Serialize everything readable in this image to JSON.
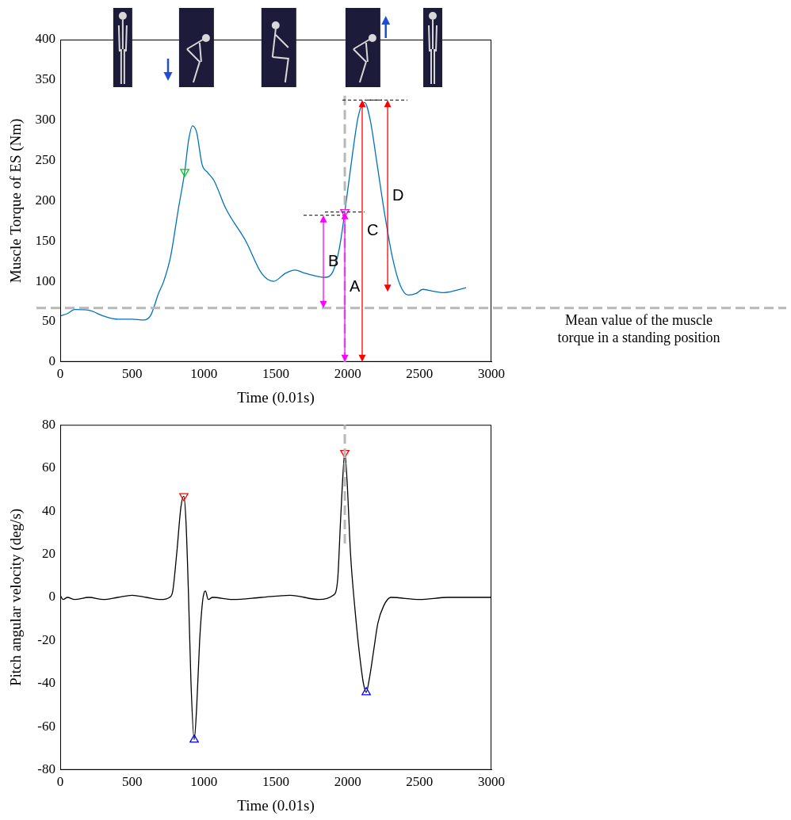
{
  "chart_data": [
    {
      "type": "line",
      "x_label": "Time (0.01s)",
      "y_label": "Muscle Torque of ES (Nm)",
      "xlim": [
        0,
        3000
      ],
      "xticks": [
        0,
        500,
        1000,
        1500,
        2000,
        2500,
        3000
      ],
      "ylim": [
        0,
        400
      ],
      "yticks": [
        0,
        50,
        100,
        150,
        200,
        250,
        300,
        350,
        400
      ],
      "grid": false,
      "series": [
        {
          "color": "#0072bd",
          "x": [
            0,
            50,
            100,
            200,
            300,
            400,
            500,
            580,
            630,
            684,
            720,
            767,
            822,
            866,
            893,
            921,
            949,
            987,
            1026,
            1070,
            1153,
            1291,
            1401,
            1484,
            1567,
            1633,
            1704,
            1842,
            1897,
            1941,
            1980,
            2035,
            2074,
            2118,
            2157,
            2201,
            2256,
            2311,
            2366,
            2421,
            2477,
            2521,
            2587,
            2669,
            2824
          ],
          "values": [
            57,
            60,
            65,
            64,
            57,
            53,
            53,
            52,
            58,
            85,
            100,
            130,
            190,
            236,
            275,
            293,
            285,
            245,
            235,
            225,
            190,
            150,
            110,
            100,
            110,
            114,
            110,
            105,
            112,
            140,
            186,
            260,
            305,
            322,
            300,
            250,
            185,
            130,
            95,
            83,
            85,
            90,
            88,
            86,
            92
          ]
        },
        {
          "type": "scatter",
          "marker": "triangle_down",
          "color": "#00cc00",
          "x": [
            866
          ],
          "values": [
            236
          ]
        },
        {
          "type": "scatter",
          "marker": "triangle_down",
          "color": "#ff00ff",
          "x": [
            1980
          ],
          "values": [
            186
          ]
        }
      ],
      "annotations": [
        {
          "label": "B",
          "x": 1831,
          "from": 67,
          "to": 182,
          "color": "#ff00ff"
        },
        {
          "label": "A",
          "x": 1980,
          "from": 0,
          "to": 186,
          "color": "#ff00ff"
        },
        {
          "label": "C",
          "x": 2101,
          "from": 0,
          "to": 325,
          "color": "#ff0000"
        },
        {
          "label": "D",
          "x": 2278,
          "from": 87,
          "to": 325,
          "color": "#ff0000"
        }
      ],
      "mean_level": {
        "label": "Mean value of the muscle torque in a standing position",
        "value": 67
      },
      "vertical_line": {
        "x": 1980,
        "from": 0,
        "to": 335
      }
    },
    {
      "type": "line",
      "x_label": "Time (0.01s)",
      "y_label": "Pitch angular velocity (deg/s)",
      "xlim": [
        0,
        3000
      ],
      "xticks": [
        0,
        500,
        1000,
        1500,
        2000,
        2500,
        3000
      ],
      "ylim": [
        -80,
        80
      ],
      "yticks": [
        -80,
        -60,
        -40,
        -20,
        0,
        20,
        40,
        60,
        80
      ],
      "grid": false,
      "series": [
        {
          "color": "#000000",
          "x": [
            0,
            20,
            50,
            100,
            200,
            300,
            400,
            500,
            600,
            700,
            760,
            783,
            810,
            840,
            860,
            875,
            893,
            910,
            932,
            950,
            970,
            990,
            1000,
            1010,
            1030,
            1060,
            1200,
            1400,
            1600,
            1800,
            1900,
            1930,
            1950,
            1970,
            1980,
            1995,
            2020,
            2050,
            2080,
            2110,
            2129,
            2150,
            2180,
            2210,
            2250,
            2300,
            2500,
            2700,
            3000
          ],
          "values": [
            1,
            -1,
            0,
            -1,
            0,
            -1,
            0,
            1,
            0,
            -1,
            0,
            3,
            20,
            42,
            47,
            35,
            0,
            -40,
            -66,
            -50,
            -20,
            -2,
            2,
            3,
            -1,
            0,
            -1,
            0,
            1,
            -1,
            1,
            8,
            35,
            60,
            67,
            55,
            20,
            -5,
            -25,
            -40,
            -44,
            -38,
            -25,
            -12,
            -4,
            0,
            -1,
            0,
            0
          ]
        },
        {
          "type": "scatter",
          "marker": "triangle_down",
          "color": "#ff0000",
          "x": [
            860,
            1980
          ],
          "values": [
            47,
            67
          ]
        },
        {
          "type": "scatter",
          "marker": "triangle",
          "color": "#0000ff",
          "x": [
            932,
            2129
          ],
          "values": [
            -66,
            -44
          ]
        }
      ],
      "vertical_line": {
        "x": 1980,
        "from": 25,
        "to": 80
      }
    }
  ]
}
